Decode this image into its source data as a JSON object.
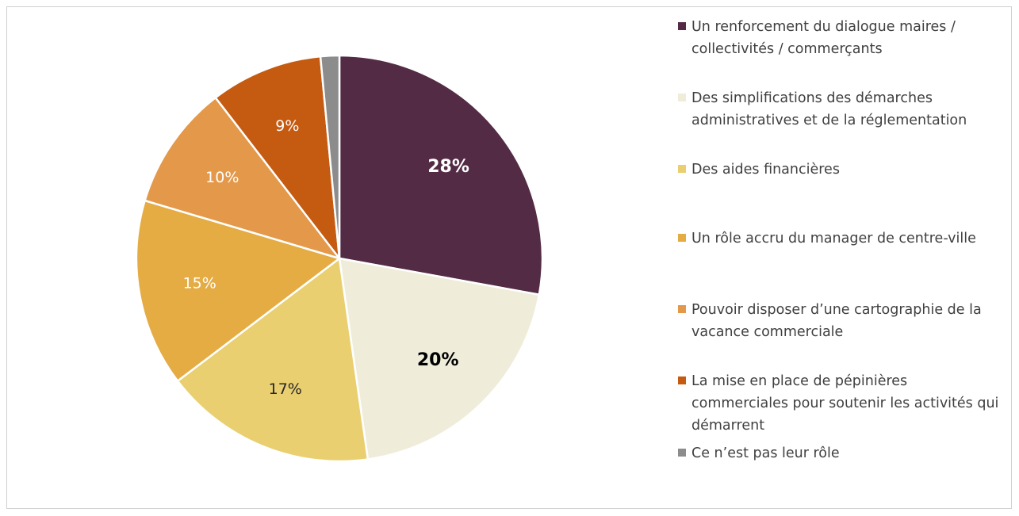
{
  "chart_data": {
    "type": "pie",
    "slices": [
      {
        "label": "Un renforcement du dialogue maires / collectivités / commerçants",
        "value": 28,
        "display": "28%",
        "color": "#532b44",
        "label_color": "#ffffff",
        "bold": true
      },
      {
        "label": "Des simplifications des démarches administratives et de la réglementation",
        "value": 20,
        "display": "20%",
        "color": "#efedda",
        "label_color": "#000000",
        "bold": true
      },
      {
        "label": "Des aides financières",
        "value": 17,
        "display": "17%",
        "color": "#e9cf70",
        "label_color": "#262626",
        "bold": false
      },
      {
        "label": "Un rôle accru du manager de centre-ville",
        "value": 15,
        "display": "15%",
        "color": "#e5ac44",
        "label_color": "#ffffff",
        "bold": false
      },
      {
        "label": "Pouvoir disposer d’une cartographie de la vacance commerciale",
        "value": 10,
        "display": "10%",
        "color": "#e3984a",
        "label_color": "#ffffff",
        "bold": false
      },
      {
        "label": "La mise en place de pépinières commerciales pour soutenir les activités qui démarrent",
        "value": 9,
        "display": "9%",
        "color": "#c55a11",
        "label_color": "#ffffff",
        "bold": false
      },
      {
        "label": "Ce n’est pas leur rôle",
        "value": 1.5,
        "display": "",
        "color": "#8c8c8c",
        "label_color": "#ffffff",
        "bold": false
      }
    ],
    "legend_position": "right"
  }
}
